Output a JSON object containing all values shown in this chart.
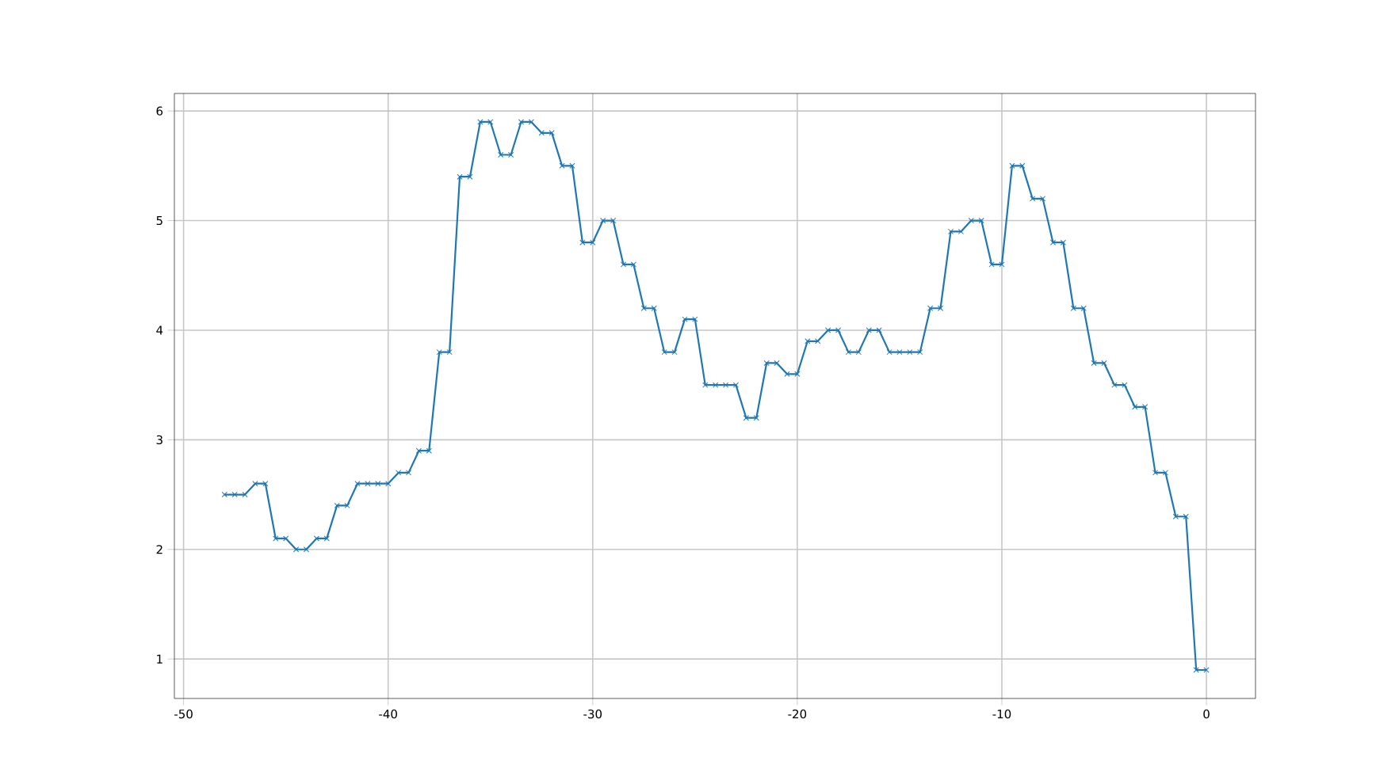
{
  "chart_data": {
    "type": "line",
    "x": [
      -48,
      -47.5,
      -47,
      -46.5,
      -46,
      -45.5,
      -45,
      -44.5,
      -44,
      -43.5,
      -43,
      -42.5,
      -42,
      -41.5,
      -41,
      -40.5,
      -40,
      -39.5,
      -39,
      -38.5,
      -38,
      -37.5,
      -37,
      -36.5,
      -36,
      -35.5,
      -35,
      -34.5,
      -34,
      -33.5,
      -33,
      -32.5,
      -32,
      -31.5,
      -31,
      -30.5,
      -30,
      -29.5,
      -29,
      -28.5,
      -28,
      -27.5,
      -27,
      -26.5,
      -26,
      -25.5,
      -25,
      -24.5,
      -24,
      -23.5,
      -23,
      -22.5,
      -22,
      -21.5,
      -21,
      -20.5,
      -20,
      -19.5,
      -19,
      -18.5,
      -18,
      -17.5,
      -17,
      -16.5,
      -16,
      -15.5,
      -15,
      -14.5,
      -14,
      -13.5,
      -13,
      -12.5,
      -12,
      -11.5,
      -11,
      -10.5,
      -10,
      -9.5,
      -9,
      -8.5,
      -8,
      -7.5,
      -7,
      -6.5,
      -6,
      -5.5,
      -5,
      -4.5,
      -4,
      -3.5,
      -3,
      -2.5,
      -2,
      -1.5,
      -1,
      -0.5,
      0
    ],
    "series": [
      {
        "color": "#1f77b4",
        "values": [
          2.5,
          2.5,
          2.5,
          2.6,
          2.6,
          2.1,
          2.1,
          2.0,
          2.0,
          2.1,
          2.1,
          2.4,
          2.4,
          2.6,
          2.6,
          2.6,
          2.6,
          2.7,
          2.7,
          2.9,
          2.9,
          3.8,
          3.8,
          5.4,
          5.4,
          5.9,
          5.9,
          5.6,
          5.6,
          5.9,
          5.9,
          5.8,
          5.8,
          5.5,
          5.5,
          4.8,
          4.8,
          5.0,
          5.0,
          4.6,
          4.6,
          4.2,
          4.2,
          3.8,
          3.8,
          4.1,
          4.1,
          3.5,
          3.5,
          3.5,
          3.5,
          3.2,
          3.2,
          3.7,
          3.7,
          3.6,
          3.6,
          3.9,
          3.9,
          4.0,
          4.0,
          3.8,
          3.8,
          4.0,
          4.0,
          3.8,
          3.8,
          3.8,
          3.8,
          4.2,
          4.2,
          4.9,
          4.9,
          5.0,
          5.0,
          4.6,
          4.6,
          5.5,
          5.5,
          5.2,
          5.2,
          4.8,
          4.8,
          4.2,
          4.2,
          3.7,
          3.7,
          3.5,
          3.5,
          3.3,
          3.3,
          2.7,
          2.7,
          2.3,
          2.3,
          0.9,
          0.9
        ]
      }
    ],
    "xlim": [
      -50.45,
      2.4
    ],
    "ylim": [
      0.64,
      6.16
    ],
    "xticks": [
      -50,
      -40,
      -30,
      -20,
      -10,
      0
    ],
    "yticks": [
      1,
      2,
      3,
      4,
      5,
      6
    ],
    "grid": true,
    "marker": "cross",
    "line_style": "solid"
  }
}
